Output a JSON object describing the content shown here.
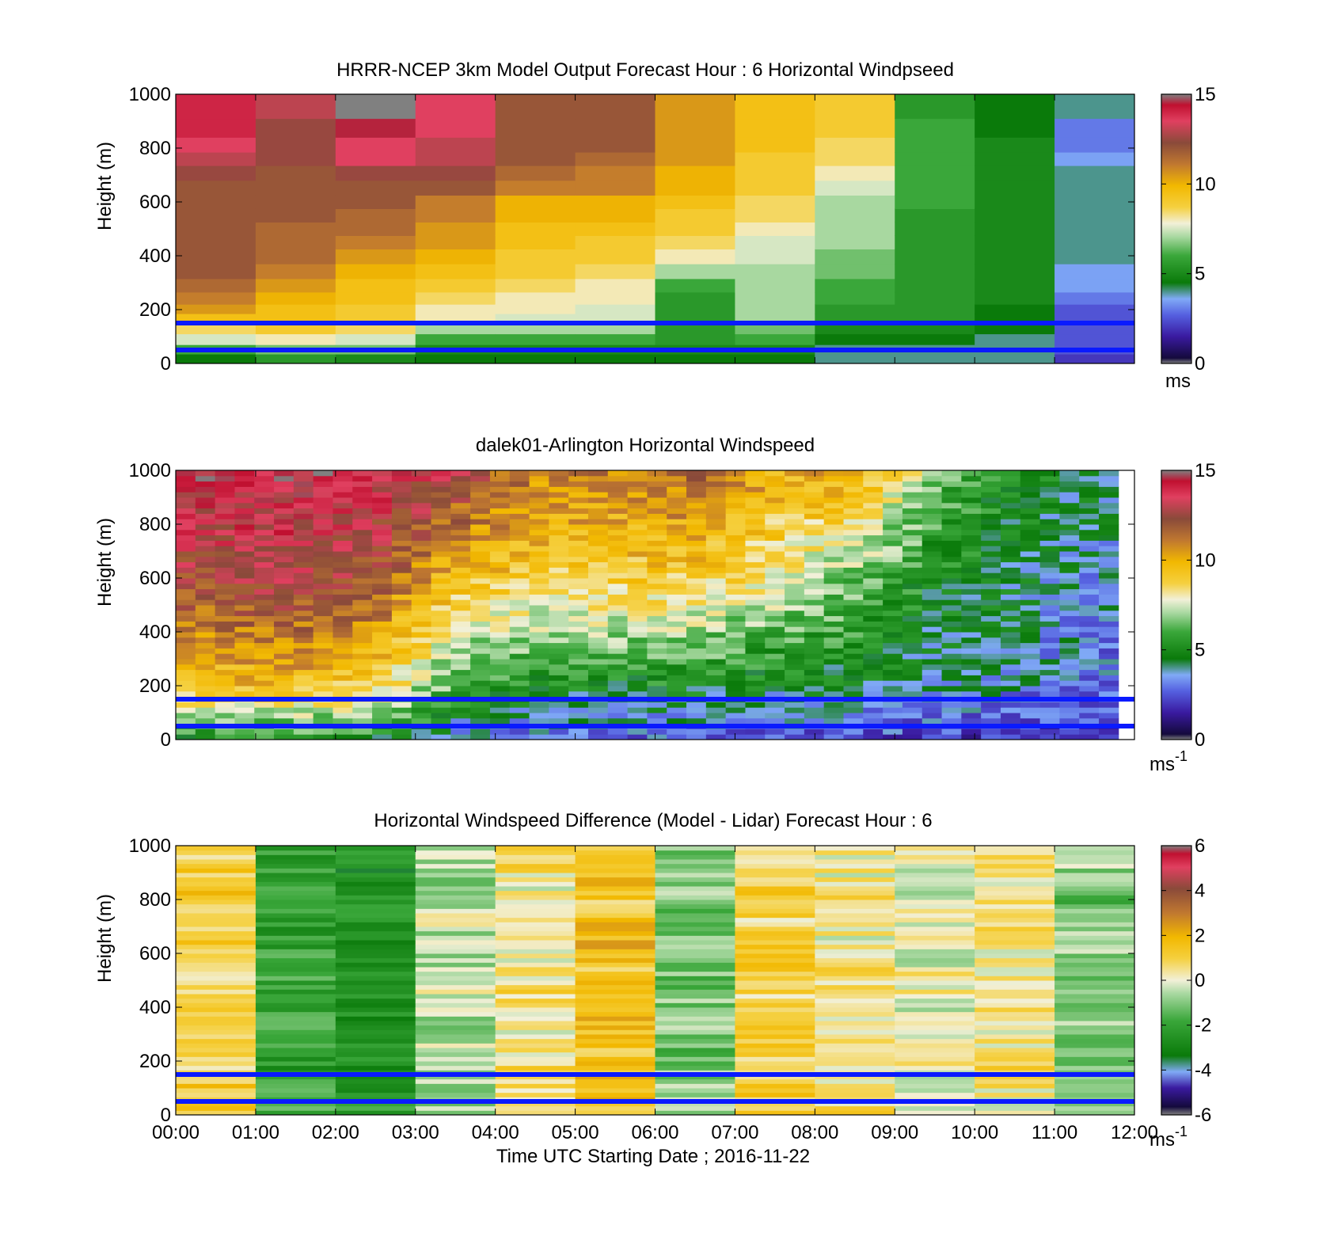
{
  "figure": {
    "xlabel": "Time UTC  Starting Date ; 2016-11-22",
    "x_ticks": [
      "00:00",
      "01:00",
      "02:00",
      "03:00",
      "04:00",
      "05:00",
      "06:00",
      "07:00",
      "08:00",
      "09:00",
      "10:00",
      "11:00",
      "12:00"
    ]
  },
  "chart_data": [
    {
      "type": "heatmap",
      "title": "HRRR-NCEP 3km Model Output   Forecast Hour : 6 Horizontal Windpseed",
      "ylabel": "Height (m)",
      "xlim_hours": [
        0,
        12
      ],
      "ylim": [
        0,
        1000
      ],
      "y_ticks": [
        0,
        200,
        400,
        600,
        800,
        1000
      ],
      "colorbar": {
        "ticks": [
          0,
          5,
          10,
          15
        ],
        "range": [
          0,
          15
        ],
        "unit_label": "ms"
      },
      "reference_lines_m": [
        50,
        150
      ],
      "heights_m": [
        20,
        50,
        90,
        130,
        170,
        200,
        240,
        290,
        340,
        400,
        450,
        500,
        550,
        600,
        650,
        710,
        760,
        810,
        870,
        950
      ],
      "hours": [
        0.5,
        1.5,
        2.5,
        3.5,
        4.5,
        5.5,
        6.5,
        7.5,
        8.5,
        9.5,
        10.5,
        11.5
      ],
      "values_ms": [
        [
          4.5,
          6.0,
          7.5,
          8.5,
          9.5,
          10.5,
          11.0,
          11.5,
          12.0,
          12.0,
          12.0,
          12.0,
          12.0,
          12.0,
          12.0,
          12.5,
          13.0,
          13.5,
          14.0,
          14.0
        ],
        [
          5.5,
          6.5,
          8.0,
          9.0,
          9.5,
          9.5,
          10.0,
          10.5,
          11.0,
          11.5,
          11.5,
          11.5,
          12.0,
          12.0,
          12.0,
          12.0,
          12.5,
          12.5,
          12.5,
          13.0
        ],
        [
          5.0,
          6.5,
          7.5,
          8.5,
          9.0,
          9.0,
          9.5,
          9.5,
          10.0,
          10.5,
          11.0,
          11.5,
          11.5,
          12.0,
          12.0,
          12.5,
          13.5,
          13.5,
          14.5,
          15.0
        ],
        [
          4.5,
          5.0,
          6.0,
          7.0,
          8.0,
          8.0,
          8.5,
          9.0,
          9.5,
          10.0,
          10.5,
          10.5,
          11.0,
          11.0,
          12.0,
          12.5,
          13.0,
          13.0,
          13.5,
          13.5
        ],
        [
          4.5,
          5.0,
          6.0,
          7.0,
          7.5,
          8.0,
          8.0,
          8.5,
          9.0,
          9.0,
          9.5,
          9.5,
          10.0,
          10.0,
          11.0,
          11.5,
          12.0,
          12.0,
          12.0,
          12.0
        ],
        [
          4.5,
          5.0,
          6.0,
          7.0,
          7.5,
          7.5,
          8.0,
          8.0,
          8.5,
          9.0,
          9.0,
          9.5,
          10.0,
          10.0,
          11.0,
          11.0,
          11.5,
          12.0,
          12.0,
          12.0
        ],
        [
          4.5,
          5.0,
          5.5,
          5.5,
          5.5,
          5.5,
          5.5,
          6.0,
          7.0,
          8.0,
          8.5,
          9.0,
          9.0,
          9.5,
          10.0,
          10.0,
          10.5,
          10.5,
          10.5,
          10.5
        ],
        [
          4.5,
          5.0,
          6.0,
          6.5,
          7.0,
          7.0,
          7.0,
          7.0,
          7.0,
          7.5,
          7.5,
          8.0,
          8.5,
          8.5,
          9.0,
          9.0,
          9.0,
          9.5,
          9.5,
          9.5
        ],
        [
          4.0,
          4.0,
          4.5,
          5.0,
          5.5,
          5.5,
          6.0,
          6.0,
          6.5,
          6.5,
          7.0,
          7.0,
          7.0,
          7.0,
          7.5,
          8.0,
          8.5,
          8.5,
          9.0,
          9.0
        ],
        [
          4.0,
          4.0,
          4.5,
          5.0,
          5.5,
          5.5,
          5.5,
          5.5,
          5.5,
          5.5,
          5.5,
          5.5,
          5.5,
          6.0,
          6.0,
          6.0,
          6.0,
          6.0,
          6.0,
          5.5
        ],
        [
          4.0,
          4.0,
          4.0,
          4.5,
          4.5,
          4.5,
          5.0,
          5.0,
          5.0,
          5.0,
          5.0,
          5.0,
          5.0,
          5.0,
          5.0,
          5.0,
          5.0,
          5.0,
          4.5,
          4.5
        ],
        [
          2.0,
          2.5,
          2.5,
          2.5,
          2.5,
          2.5,
          3.0,
          3.5,
          3.5,
          4.0,
          4.0,
          4.0,
          4.0,
          4.0,
          4.0,
          4.0,
          3.5,
          3.0,
          3.0,
          4.0
        ]
      ]
    },
    {
      "type": "heatmap",
      "title": "dalek01-Arlington  Horizontal Windspeed",
      "ylabel": "Height (m)",
      "xlim_hours": [
        0,
        12
      ],
      "ylim": [
        0,
        1000
      ],
      "y_ticks": [
        0,
        200,
        400,
        600,
        800,
        1000
      ],
      "colorbar": {
        "ticks": [
          0,
          5,
          10,
          15
        ],
        "range": [
          0,
          15
        ],
        "unit_label": "ms",
        "unit_exponent": "-1"
      },
      "reference_lines_m": [
        50,
        150
      ],
      "description_profile": {
        "hours": [
          0.5,
          1.5,
          2.5,
          3.5,
          4.5,
          5.5,
          6.5,
          7.5,
          8.5,
          9.5,
          10.5,
          11.5
        ],
        "low_level_ms": [
          9.5,
          9.5,
          9.0,
          6.0,
          5.0,
          5.0,
          5.0,
          4.5,
          4.5,
          4.0,
          3.5,
          3.0
        ],
        "mid_level_ms": [
          12.5,
          13.0,
          12.0,
          9.5,
          9.0,
          9.0,
          9.0,
          8.0,
          6.5,
          5.0,
          4.5,
          3.5
        ],
        "upper_level_ms": [
          14.0,
          14.0,
          14.0,
          13.0,
          11.0,
          11.0,
          11.5,
          10.0,
          10.5,
          6.5,
          5.0,
          4.5
        ]
      }
    },
    {
      "type": "heatmap",
      "title": "Horizontal Windspeed Difference (Model - Lidar) Forecast Hour : 6",
      "ylabel": "Height (m)",
      "xlim_hours": [
        0,
        12
      ],
      "ylim": [
        0,
        1000
      ],
      "y_ticks": [
        0,
        200,
        400,
        600,
        800,
        1000
      ],
      "colorbar": {
        "ticks": [
          -6,
          -4,
          -2,
          0,
          2,
          4,
          6
        ],
        "range": [
          -6,
          6
        ],
        "unit_label": "ms",
        "unit_exponent": "-1"
      },
      "reference_lines_m": [
        50,
        150
      ],
      "hours": [
        0.5,
        1.5,
        2.5,
        3.5,
        4.5,
        5.5,
        6.5,
        7.5,
        8.5,
        9.5,
        10.5,
        11.5
      ],
      "column_mean_diff_ms": [
        1.0,
        -2.0,
        -2.5,
        -0.5,
        0.5,
        1.5,
        -1.0,
        1.0,
        0.5,
        0.0,
        0.5,
        -1.0
      ]
    }
  ]
}
